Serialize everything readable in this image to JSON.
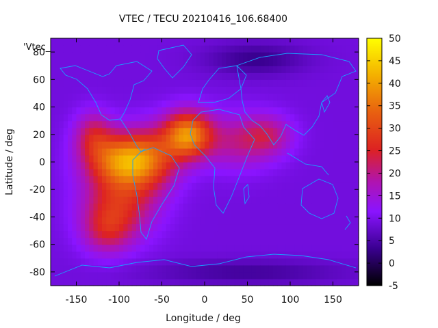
{
  "chart_data": {
    "type": "heatmap",
    "title": "VTEC / TECU 20210416_106.68400",
    "xlabel": "Longitude / deg",
    "ylabel": "Latitude / deg",
    "key_label": "'Vtec_",
    "xlim": [
      -180,
      180
    ],
    "ylim": [
      -90,
      90
    ],
    "x_ticks": [
      -150,
      -100,
      -50,
      0,
      50,
      100,
      150
    ],
    "y_ticks": [
      -80,
      -60,
      -40,
      -20,
      0,
      20,
      40,
      60,
      80
    ],
    "colorbar": {
      "range": [
        -5,
        50
      ],
      "ticks": [
        -5,
        0,
        5,
        10,
        15,
        20,
        25,
        30,
        35,
        40,
        45,
        50
      ],
      "palette": "black-purple-red-orange-yellow"
    },
    "background_level": 9,
    "features": [
      {
        "lon": -20,
        "lat": 20,
        "amplitude": 28,
        "sigma_lon": 20,
        "sigma_lat": 12
      },
      {
        "lon": -100,
        "lat": 2,
        "amplitude": 22,
        "sigma_lon": 28,
        "sigma_lat": 13
      },
      {
        "lon": -65,
        "lat": 2,
        "amplitude": 17,
        "sigma_lon": 25,
        "sigma_lat": 16
      },
      {
        "lon": -130,
        "lat": 20,
        "amplitude": 12,
        "sigma_lon": 16,
        "sigma_lat": 12
      },
      {
        "lon": -100,
        "lat": -30,
        "amplitude": 16,
        "sigma_lon": 30,
        "sigma_lat": 18
      },
      {
        "lon": -115,
        "lat": -50,
        "amplitude": 10,
        "sigma_lon": 20,
        "sigma_lat": 12
      },
      {
        "lon": 40,
        "lat": 15,
        "amplitude": 10,
        "sigma_lon": 30,
        "sigma_lat": 14
      },
      {
        "lon": 75,
        "lat": 20,
        "amplitude": 9,
        "sigma_lon": 20,
        "sigma_lat": 10
      },
      {
        "lon": 60,
        "lat": 75,
        "amplitude": -6,
        "sigma_lon": 40,
        "sigma_lat": 8
      },
      {
        "lon": 50,
        "lat": -80,
        "amplitude": -5,
        "sigma_lon": 80,
        "sigma_lat": 6
      }
    ]
  }
}
